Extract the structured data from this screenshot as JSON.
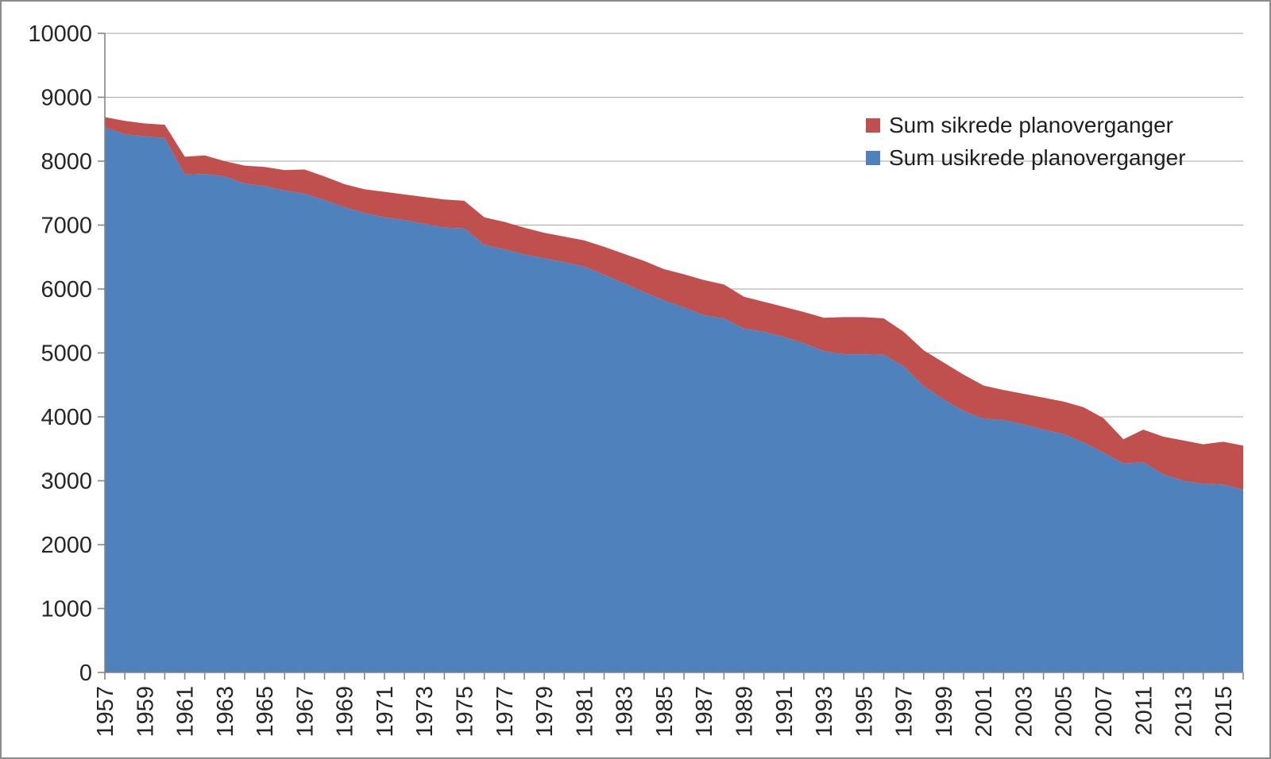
{
  "chart_data": {
    "type": "area",
    "stacked": true,
    "title": "",
    "xlabel": "",
    "ylabel": "",
    "ylim": [
      0,
      10000
    ],
    "ytick_step": 1000,
    "yticks": [
      0,
      1000,
      2000,
      3000,
      4000,
      5000,
      6000,
      7000,
      8000,
      9000,
      10000
    ],
    "x_label_interval": 2,
    "x_label_rotation": -90,
    "grid": "horizontal",
    "legend_position": "top-right-inside",
    "categories": [
      "1957",
      "1958",
      "1959",
      "1960",
      "1961",
      "1962",
      "1963",
      "1964",
      "1965",
      "1966",
      "1967",
      "1968",
      "1969",
      "1970",
      "1971",
      "1972",
      "1973",
      "1974",
      "1975",
      "1976",
      "1977",
      "1978",
      "1979",
      "1980",
      "1981",
      "1982",
      "1983",
      "1984",
      "1985",
      "1986",
      "1987",
      "1988",
      "1989",
      "1990",
      "1991",
      "1992",
      "1993",
      "1994",
      "1995",
      "1996",
      "1997",
      "1998",
      "1999",
      "2000",
      "2001",
      "2002",
      "2003",
      "2004",
      "2005",
      "2006",
      "2007",
      "2009",
      "2011",
      "2012",
      "2013",
      "2014",
      "2015",
      "2016"
    ],
    "series": [
      {
        "name": "Sum usikrede planoverganger",
        "color": "#4F81BD",
        "values": [
          8530,
          8420,
          8390,
          8360,
          7790,
          7800,
          7760,
          7650,
          7610,
          7540,
          7490,
          7390,
          7280,
          7190,
          7120,
          7080,
          7020,
          6960,
          6950,
          6690,
          6620,
          6540,
          6480,
          6420,
          6350,
          6220,
          6090,
          5950,
          5820,
          5710,
          5590,
          5540,
          5380,
          5330,
          5250,
          5150,
          5030,
          4980,
          4980,
          4970,
          4790,
          4480,
          4270,
          4090,
          3970,
          3950,
          3880,
          3800,
          3730,
          3600,
          3440,
          3270,
          3290,
          3100,
          3000,
          2950,
          2940,
          2860
        ]
      },
      {
        "name": "Sum sikrede planoverganger",
        "color": "#C0504D",
        "values": [
          160,
          210,
          200,
          210,
          280,
          290,
          240,
          280,
          300,
          320,
          380,
          370,
          360,
          370,
          400,
          400,
          420,
          440,
          430,
          430,
          430,
          420,
          400,
          400,
          410,
          440,
          460,
          490,
          490,
          520,
          550,
          530,
          500,
          470,
          470,
          490,
          520,
          580,
          580,
          570,
          540,
          560,
          580,
          570,
          520,
          470,
          480,
          500,
          510,
          550,
          540,
          380,
          510,
          590,
          630,
          620,
          670,
          690
        ]
      }
    ]
  },
  "legend": {
    "items": [
      {
        "label": "Sum sikrede planoverganger",
        "color": "#C0504D"
      },
      {
        "label": "Sum usikrede planoverganger",
        "color": "#4F81BD"
      }
    ]
  },
  "style": {
    "gridline_color": "#A6A6A6",
    "axis_color": "#868686",
    "tick_label_color": "#262626",
    "plot_background": "#FFFFFF"
  }
}
